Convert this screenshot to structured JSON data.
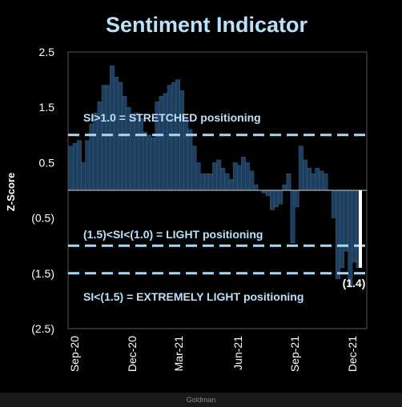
{
  "colors": {
    "background": "#000000",
    "plot_background": "#000000",
    "bars": "#1f3f5f",
    "bar_edge": "#3a6a96",
    "threshold_lines": "#a9d8f5",
    "title": "#b9e1fa",
    "annotation_text": "#b9e1fa",
    "latest_bar": "#ffffff",
    "axis_text": "#ffffff"
  },
  "source_label": "Goldman",
  "chart_data": {
    "type": "bar",
    "title": "Sentiment Indicator",
    "ylabel": "Z-Score",
    "xlabel": "",
    "ylim": [
      -2.5,
      2.5
    ],
    "yticks": [
      2.5,
      1.5,
      0.5,
      -0.5,
      -1.5,
      -2.5
    ],
    "ytick_labels": [
      "2.5",
      "1.5",
      "0.5",
      "(0.5)",
      "(1.5)",
      "(2.5)"
    ],
    "xticks": [
      "Sep-20",
      "Dec-20",
      "Mar-21",
      "Jun-21",
      "Sep-21",
      "Dec-21"
    ],
    "grid": false,
    "weekly_values": [
      0.8,
      0.85,
      0.9,
      0.5,
      0.9,
      1.2,
      1.4,
      1.6,
      1.9,
      1.9,
      2.25,
      2.05,
      1.95,
      1.7,
      1.5,
      1.35,
      1.4,
      1.3,
      1.05,
      1.0,
      0.95,
      1.6,
      1.7,
      1.75,
      1.9,
      1.95,
      2.0,
      1.8,
      1.3,
      1.1,
      0.8,
      0.5,
      0.3,
      0.3,
      0.3,
      0.5,
      0.55,
      0.4,
      0.3,
      0.2,
      0.5,
      0.45,
      0.6,
      0.5,
      0.35,
      0.1,
      0.0,
      -0.05,
      -0.1,
      -0.35,
      -0.3,
      -0.25,
      0.1,
      0.3,
      -0.95,
      -0.3,
      0.8,
      0.55,
      0.4,
      0.3,
      0.4,
      0.35,
      0.3,
      0.0,
      -0.5,
      -1.6,
      -1.4,
      -1.1,
      -1.75,
      -1.3,
      -1.4
    ],
    "latest_value": -1.4,
    "latest_label": "(1.4)",
    "thresholds": [
      {
        "value": 1.0,
        "label": "SI>1.0 = STRETCHED positioning"
      },
      {
        "value": -1.0,
        "label": "(1.5)<SI<(1.0) = LIGHT positioning"
      },
      {
        "value": -1.5,
        "label": "SI<(1.5) = EXTREMELY LIGHT positioning"
      }
    ]
  }
}
